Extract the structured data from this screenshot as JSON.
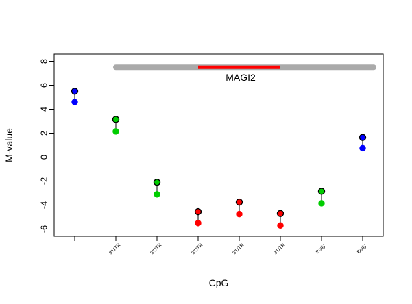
{
  "chart_data": {
    "type": "scatter",
    "title": "",
    "xlabel": "CpG",
    "ylabel": "M-value",
    "ylim": [
      -6.6,
      8.6
    ],
    "yticks": [
      -6,
      -4,
      -2,
      0,
      2,
      4,
      6,
      8
    ],
    "xlim": [
      0.5,
      8.5
    ],
    "grid": false,
    "legend": "none",
    "categories": [
      "",
      "3'UTR",
      "3'UTR",
      "3'UTR",
      "3'UTR",
      "3'UTR",
      "Body",
      "Body"
    ],
    "series": [
      {
        "values": [
          5.5,
          3.15,
          -2.1,
          -4.55,
          -3.75,
          -4.7,
          -2.85,
          1.65
        ]
      },
      {
        "values": [
          4.6,
          2.15,
          -3.1,
          -5.5,
          -4.75,
          -5.7,
          -3.85,
          0.75
        ]
      }
    ],
    "point_colors": [
      "#0000ff",
      "#00cd00",
      "#00cd00",
      "#ff0000",
      "#ff0000",
      "#ff0000",
      "#00cd00",
      "#0000ff"
    ],
    "gene_track": {
      "label": "MAGI2",
      "y": 7.5,
      "range_x": [
        2,
        8.75
      ],
      "gene_x": [
        4,
        6
      ],
      "range_color": "#aaaaaa",
      "gene_color": "#ff0000"
    }
  }
}
